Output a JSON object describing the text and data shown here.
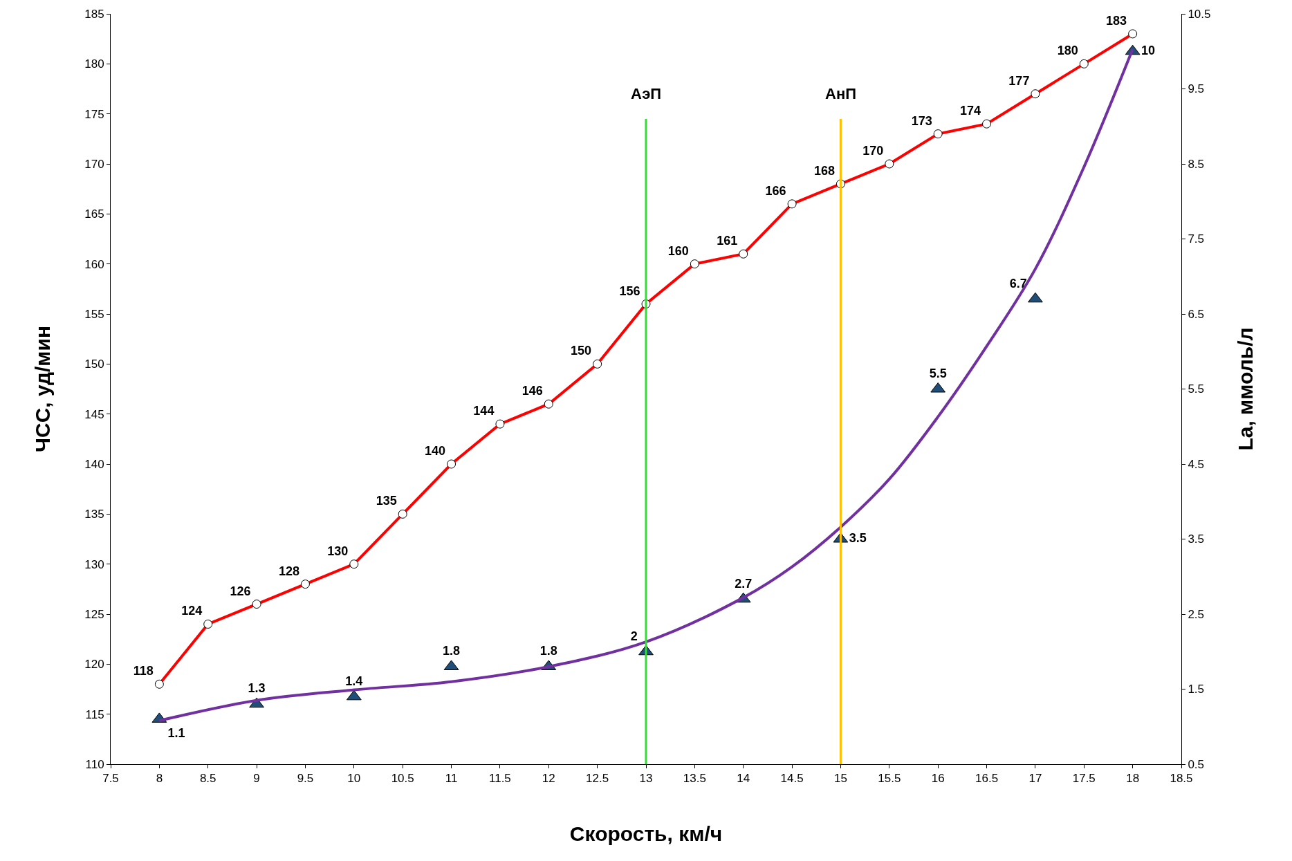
{
  "chart_data": {
    "type": "line",
    "xlabel": "Скорость, км/ч",
    "ylabel": "ЧСС, уд/мин",
    "y2label": "La, ммоль/л",
    "xlim": [
      7.5,
      18.5
    ],
    "xticks": [
      7.5,
      8,
      8.5,
      9,
      9.5,
      10,
      10.5,
      11,
      11.5,
      12,
      12.5,
      13,
      13.5,
      14,
      14.5,
      15,
      15.5,
      16,
      16.5,
      17,
      17.5,
      18,
      18.5
    ],
    "ylim": [
      110,
      185
    ],
    "yticks": [
      110,
      115,
      120,
      125,
      130,
      135,
      140,
      145,
      150,
      155,
      160,
      165,
      170,
      175,
      180,
      185
    ],
    "y2lim": [
      0.5,
      10.5
    ],
    "y2ticks": [
      0.5,
      1.5,
      2.5,
      3.5,
      4.5,
      5.5,
      6.5,
      7.5,
      8.5,
      9.5,
      10.5
    ],
    "data_labels": true,
    "series": [
      {
        "color": "#ff0000",
        "marker": "circle",
        "x": [
          8,
          8.5,
          9,
          9.5,
          10,
          10.5,
          11,
          11.5,
          12,
          12.5,
          13,
          13.5,
          14,
          14.5,
          15,
          15.5,
          16,
          16.5,
          17,
          17.5,
          18
        ],
        "values": [
          118,
          124,
          126,
          128,
          130,
          135,
          140,
          144,
          146,
          150,
          156,
          160,
          161,
          166,
          168,
          170,
          173,
          174,
          177,
          180,
          183
        ]
      },
      {
        "type": "scatter",
        "color": "#1f4e79",
        "marker": "triangle",
        "axis": "y2",
        "x": [
          8,
          9,
          10,
          11,
          12,
          13,
          14,
          15,
          16,
          17,
          18
        ],
        "values": [
          1.1,
          1.3,
          1.4,
          1.8,
          1.8,
          2,
          2.7,
          3.5,
          5.5,
          6.7,
          10
        ]
      },
      {
        "type": "line",
        "color": "#7030a0",
        "marker": "none",
        "axis": "y2",
        "data_labels": false,
        "x": [
          8,
          9,
          10,
          11,
          12,
          13,
          14,
          14.5,
          15,
          15.5,
          16,
          16.5,
          17,
          17.5,
          18
        ],
        "values": [
          1.08,
          1.35,
          1.49,
          1.6,
          1.8,
          2.13,
          2.72,
          3.13,
          3.66,
          4.3,
          5.13,
          6.07,
          7.1,
          8.46,
          10.03
        ]
      }
    ],
    "ref_lines": [
      {
        "axis": "x",
        "value": 13,
        "label": "АэП",
        "color": "#33dd33"
      },
      {
        "axis": "x",
        "value": 15,
        "label": "АнП",
        "color": "#ffc000"
      }
    ]
  }
}
